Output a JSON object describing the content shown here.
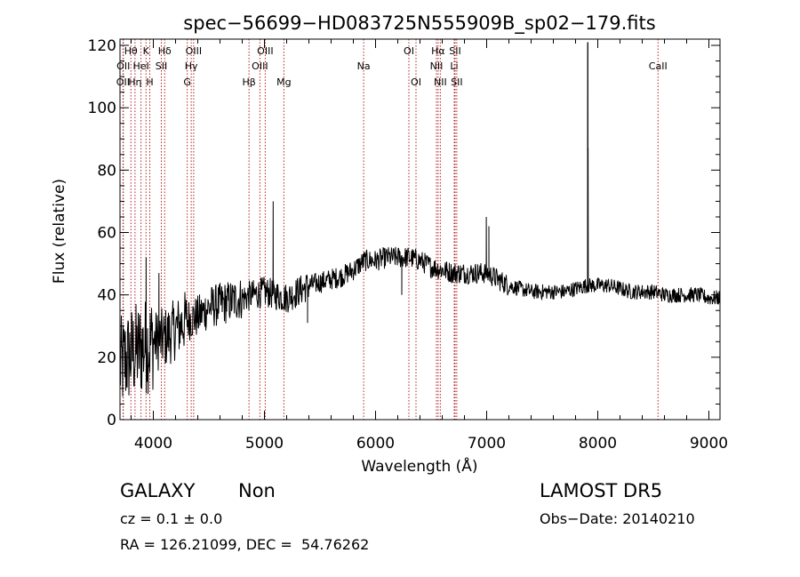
{
  "chart_data": {
    "type": "line",
    "title": "spec−56699−HD083725N555909B_sp02−179.fits",
    "xlabel": "Wavelength (Å)",
    "ylabel": "Flux (relative)",
    "xlim": [
      3700,
      9100
    ],
    "ylim": [
      0,
      122
    ],
    "x_ticks": [
      4000,
      5000,
      6000,
      7000,
      8000,
      9000
    ],
    "y_ticks": [
      0,
      20,
      40,
      60,
      80,
      100,
      120
    ],
    "grid": false,
    "line_color": "#000000",
    "marker_color": "#b22222",
    "lines": [
      {
        "label": "OII",
        "x": 3727,
        "row": 3
      },
      {
        "label": "Hθ",
        "x": 3798,
        "row": 1
      },
      {
        "label": "OII",
        "x": 3730,
        "row": 2
      },
      {
        "label": "Hη",
        "x": 3835,
        "row": 3
      },
      {
        "label": "HeI",
        "x": 3889,
        "row": 2
      },
      {
        "label": "K",
        "x": 3934,
        "row": 1
      },
      {
        "label": "H",
        "x": 3968,
        "row": 3
      },
      {
        "label": "Hδ",
        "x": 4102,
        "row": 1
      },
      {
        "label": "SII",
        "x": 4072,
        "row": 2
      },
      {
        "label": "OIII",
        "x": 4363,
        "row": 1
      },
      {
        "label": "Hγ",
        "x": 4341,
        "row": 2
      },
      {
        "label": "G",
        "x": 4305,
        "row": 3
      },
      {
        "label": "Hβ",
        "x": 4861,
        "row": 3
      },
      {
        "label": "OIII",
        "x": 4959,
        "row": 2
      },
      {
        "label": "OIII",
        "x": 5007,
        "row": 1
      },
      {
        "label": "Mg",
        "x": 5175,
        "row": 3
      },
      {
        "label": "Na",
        "x": 5893,
        "row": 2
      },
      {
        "label": "OI",
        "x": 6300,
        "row": 1
      },
      {
        "label": "OI",
        "x": 6364,
        "row": 3
      },
      {
        "label": "NII",
        "x": 6548,
        "row": 2
      },
      {
        "label": "Hα",
        "x": 6563,
        "row": 1
      },
      {
        "label": "NII",
        "x": 6583,
        "row": 3
      },
      {
        "label": "SII",
        "x": 6716,
        "row": 1
      },
      {
        "label": "Li",
        "x": 6708,
        "row": 2
      },
      {
        "label": "SII",
        "x": 6731,
        "row": 3
      },
      {
        "label": "CaII",
        "x": 8542,
        "row": 2
      }
    ],
    "spectrum": {
      "anchors": [
        [
          3700,
          17
        ],
        [
          3800,
          21
        ],
        [
          3900,
          23
        ],
        [
          4000,
          25
        ],
        [
          4100,
          26
        ],
        [
          4200,
          29
        ],
        [
          4300,
          32
        ],
        [
          4400,
          33
        ],
        [
          4500,
          36
        ],
        [
          4600,
          37
        ],
        [
          4700,
          38
        ],
        [
          4800,
          39
        ],
        [
          4900,
          40
        ],
        [
          5000,
          41
        ],
        [
          5100,
          40
        ],
        [
          5200,
          39
        ],
        [
          5300,
          41
        ],
        [
          5400,
          43
        ],
        [
          5500,
          44
        ],
        [
          5600,
          45
        ],
        [
          5700,
          46
        ],
        [
          5800,
          48
        ],
        [
          5900,
          51
        ],
        [
          6000,
          51
        ],
        [
          6100,
          52
        ],
        [
          6200,
          52
        ],
        [
          6300,
          52
        ],
        [
          6400,
          51
        ],
        [
          6500,
          49
        ],
        [
          6600,
          48
        ],
        [
          6700,
          47
        ],
        [
          6800,
          47
        ],
        [
          6900,
          47
        ],
        [
          7000,
          47
        ],
        [
          7100,
          45
        ],
        [
          7200,
          43
        ],
        [
          7300,
          42
        ],
        [
          7400,
          41
        ],
        [
          7500,
          41
        ],
        [
          7600,
          41
        ],
        [
          7700,
          41
        ],
        [
          7800,
          42
        ],
        [
          7900,
          43
        ],
        [
          8000,
          43
        ],
        [
          8100,
          43
        ],
        [
          8200,
          42
        ],
        [
          8300,
          41
        ],
        [
          8400,
          41
        ],
        [
          8500,
          41
        ],
        [
          8600,
          40
        ],
        [
          8700,
          40
        ],
        [
          8800,
          40
        ],
        [
          8900,
          40
        ],
        [
          9000,
          39
        ],
        [
          9100,
          39
        ]
      ],
      "emission": [
        [
          7909,
          121
        ],
        [
          7911,
          121
        ],
        [
          7913,
          87
        ],
        [
          5078,
          70
        ],
        [
          7020,
          62
        ],
        [
          6997,
          65
        ],
        [
          3935,
          52
        ],
        [
          4050,
          47
        ]
      ],
      "absorption": [
        [
          5388,
          31
        ],
        [
          6236,
          40
        ]
      ]
    }
  },
  "info": {
    "object_class": "GALAXY",
    "subclass": "Non",
    "redshift_line": "cz = 0.1 ± 0.0",
    "coords_line": "RA = 126.21099, DEC =  54.76262",
    "survey": "LAMOST DR5",
    "obs_date": "Obs−Date: 20140210"
  }
}
